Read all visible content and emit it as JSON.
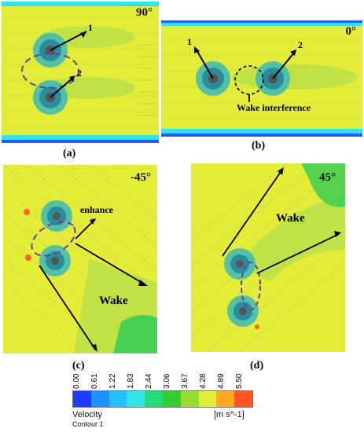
{
  "panels": {
    "a": {
      "angle": "90°",
      "label": "(a)",
      "annotations": {
        "rotor1": "1",
        "rotor2": "2"
      }
    },
    "b": {
      "angle": "0°",
      "label": "(b)",
      "annotations": {
        "rotor1": "1",
        "rotor2": "2",
        "interference": "Wake interference"
      }
    },
    "c": {
      "angle": "-45°",
      "label": "(c)",
      "annotations": {
        "enhance": "enhance",
        "wake": "Wake"
      }
    },
    "d": {
      "angle": "45°",
      "label": "(d)",
      "annotations": {
        "wake": "Wake"
      }
    }
  },
  "colorbar": {
    "ticks": [
      "0.00",
      "0.61",
      "1.22",
      "1.83",
      "2.44",
      "3.06",
      "3.67",
      "4.28",
      "4.89",
      "5.50"
    ],
    "colors": [
      "#1e3cff",
      "#1e90ff",
      "#22c0ff",
      "#2ee6e6",
      "#22dd77",
      "#33cc33",
      "#99dd33",
      "#e3ec36",
      "#ffaa22",
      "#ff5522"
    ],
    "title": "Velocity",
    "subtitle": "Contour 1",
    "unit": "[m s^-1]"
  }
}
